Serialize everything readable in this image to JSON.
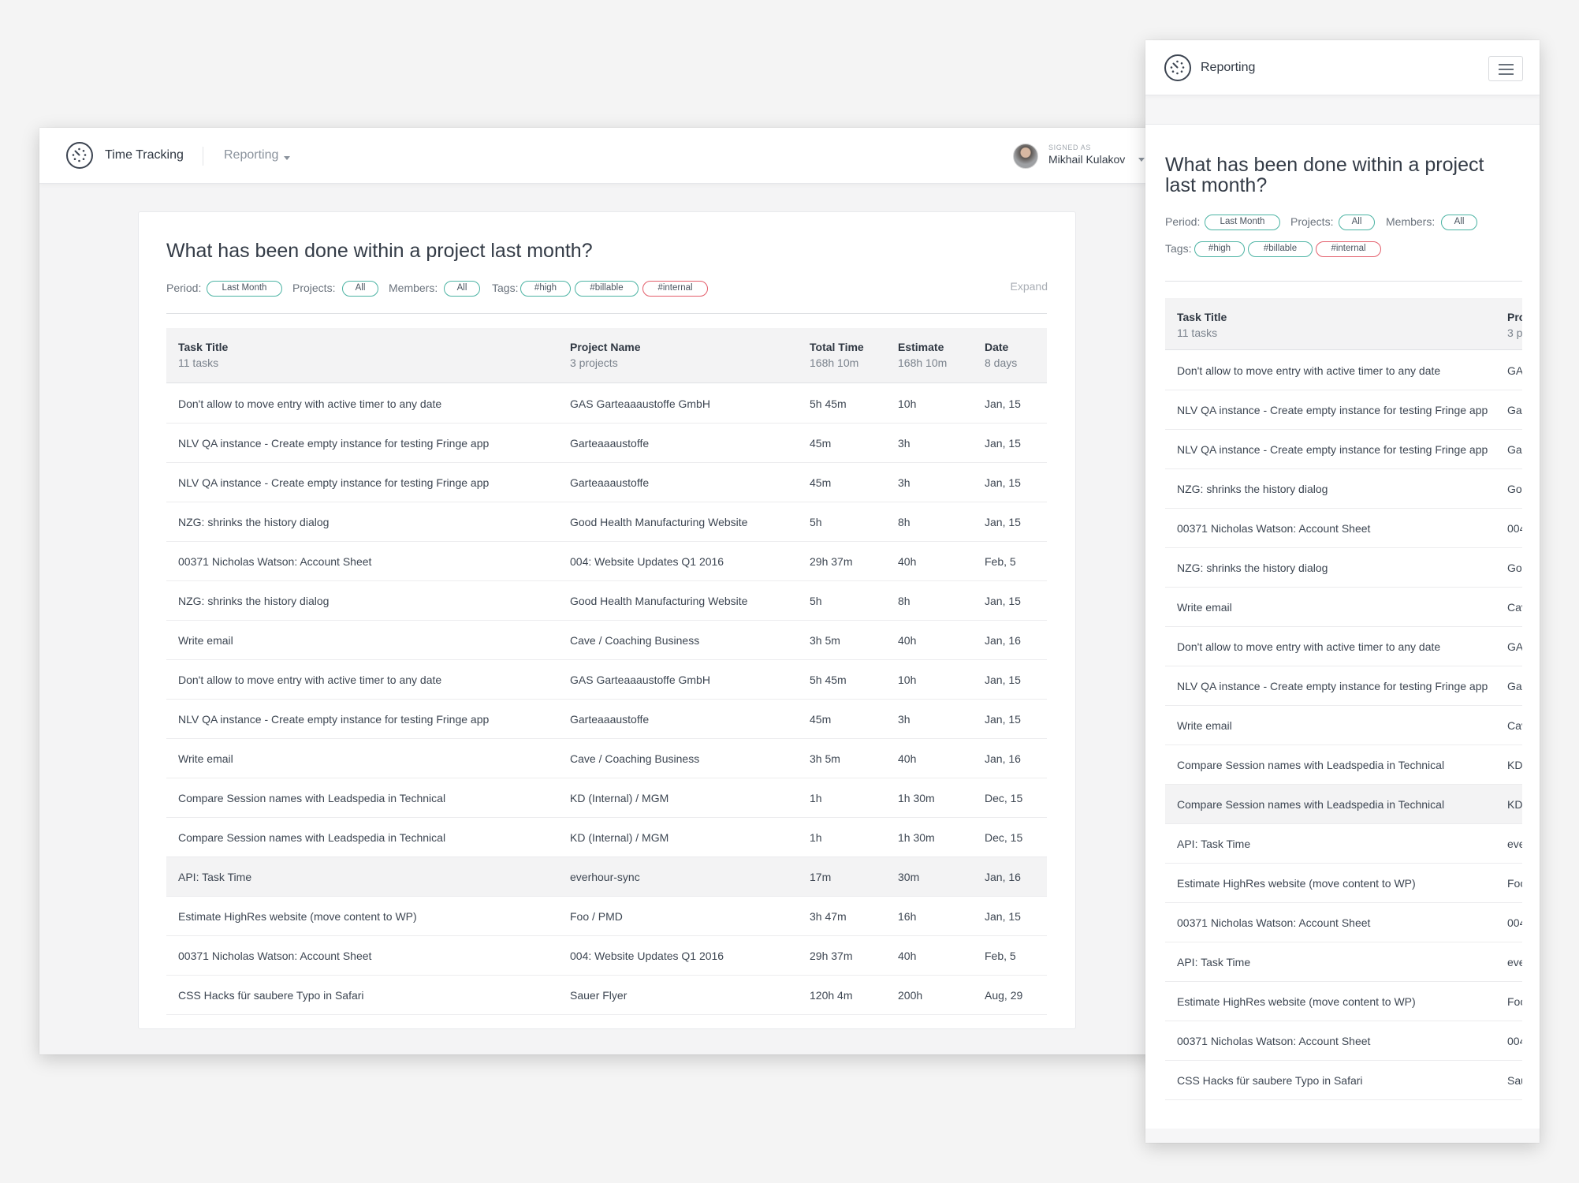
{
  "desktop": {
    "app_title": "Time Tracking",
    "menu": "Reporting",
    "signed_as": "SIGNED AS",
    "user": "Mikhail Kulakov",
    "heading": "What has been done within a project last month?",
    "filters": {
      "period_label": "Period:",
      "period": "Last Month",
      "projects_label": "Projects:",
      "projects": "All",
      "members_label": "Members:",
      "members": "All",
      "tags_label": "Tags:",
      "tags": [
        "#high",
        "#billable",
        "#internal"
      ]
    },
    "expand": "Expand",
    "columns": [
      {
        "title": "Task Title",
        "sub": "11 tasks"
      },
      {
        "title": "Project Name",
        "sub": "3 projects"
      },
      {
        "title": "Total Time",
        "sub": "168h 10m"
      },
      {
        "title": "Estimate",
        "sub": "168h 10m"
      },
      {
        "title": "Date",
        "sub": "8 days"
      }
    ],
    "rows": [
      [
        "Don't allow to move entry with active timer to any date",
        "GAS Garteaaaustoffe GmbH",
        "5h 45m",
        "10h",
        "Jan, 15"
      ],
      [
        "NLV QA instance - Create empty instance for testing Fringe app",
        "Garteaaaustoffe",
        "45m",
        "3h",
        "Jan, 15"
      ],
      [
        "NLV QA instance - Create empty instance for testing Fringe app",
        "Garteaaaustoffe",
        "45m",
        "3h",
        "Jan, 15"
      ],
      [
        "NZG: shrinks the history dialog",
        "Good Health Manufacturing Website",
        "5h",
        "8h",
        "Jan, 15"
      ],
      [
        "00371 Nicholas Watson: Account Sheet",
        "004: Website Updates Q1 2016",
        "29h 37m",
        "40h",
        "Feb, 5"
      ],
      [
        "NZG: shrinks the history dialog",
        "Good Health Manufacturing Website",
        "5h",
        "8h",
        "Jan, 15"
      ],
      [
        "Write email",
        "Cave / Coaching Business",
        "3h 5m",
        "40h",
        "Jan, 16"
      ],
      [
        "Don't allow to move entry with active timer to any date",
        "GAS Garteaaaustoffe GmbH",
        "5h 45m",
        "10h",
        "Jan, 15"
      ],
      [
        "NLV QA instance - Create empty instance for testing Fringe app",
        "Garteaaaustoffe",
        "45m",
        "3h",
        "Jan, 15"
      ],
      [
        "Write email",
        "Cave / Coaching Business",
        "3h 5m",
        "40h",
        "Jan, 16"
      ],
      [
        "Compare Session names with Leadspedia in Technical",
        "KD (Internal) / MGM",
        "1h",
        "1h 30m",
        "Dec, 15"
      ],
      [
        "Compare Session names with Leadspedia in Technical",
        "KD (Internal) / MGM",
        "1h",
        "1h 30m",
        "Dec, 15"
      ],
      [
        "API: Task Time",
        "everhour-sync",
        "17m",
        "30m",
        "Jan, 16"
      ],
      [
        "Estimate HighRes website (move content to WP)",
        "Foo / PMD",
        "3h 47m",
        "16h",
        "Jan, 15"
      ],
      [
        "00371 Nicholas Watson: Account Sheet",
        "004: Website Updates Q1 2016",
        "29h 37m",
        "40h",
        "Feb, 5"
      ],
      [
        "CSS Hacks für saubere Typo in Safari",
        "Sauer Flyer",
        "120h 4m",
        "200h",
        "Aug, 29"
      ]
    ]
  },
  "mobile": {
    "app_title": "Reporting",
    "heading": "What has been done within a project last month?",
    "filters": {
      "period_label": "Period:",
      "period": "Last Month",
      "projects_label": "Projects:",
      "projects": "All",
      "members_label": "Members:",
      "members": "All",
      "tags_label": "Tags:",
      "tags": [
        "#high",
        "#billable",
        "#internal"
      ]
    },
    "columns": [
      {
        "title": "Task Title",
        "sub": "11 tasks"
      },
      {
        "title": "Pro",
        "sub": "3 p"
      }
    ],
    "rows": [
      [
        "Don't allow to move entry with active timer to any date",
        "GA"
      ],
      [
        "NLV QA instance - Create empty instance for testing Fringe app",
        "Gar"
      ],
      [
        "NLV QA instance - Create empty instance for testing Fringe app",
        "Gar"
      ],
      [
        "NZG: shrinks the history dialog",
        "Goo"
      ],
      [
        "00371 Nicholas Watson: Account Sheet",
        "004"
      ],
      [
        "NZG: shrinks the history dialog",
        "Goo"
      ],
      [
        "Write email",
        "Cav"
      ],
      [
        "Don't allow to move entry with active timer to any date",
        "GA"
      ],
      [
        "NLV QA instance - Create empty instance for testing Fringe app",
        "Gar"
      ],
      [
        "Write email",
        "Cav"
      ],
      [
        "Compare Session names with Leadspedia in Technical",
        "KD"
      ],
      [
        "Compare Session names with Leadspedia in Technical",
        "KD"
      ],
      [
        "API: Task Time",
        "eve"
      ],
      [
        "Estimate HighRes website (move content to WP)",
        "Foo"
      ],
      [
        "00371 Nicholas Watson: Account Sheet",
        "004"
      ],
      [
        "API: Task Time",
        "eve"
      ],
      [
        "Estimate HighRes website (move content to WP)",
        "Foo"
      ],
      [
        "00371 Nicholas Watson: Account Sheet",
        "004"
      ],
      [
        "CSS Hacks für saubere Typo in Safari",
        "Sau"
      ]
    ]
  }
}
